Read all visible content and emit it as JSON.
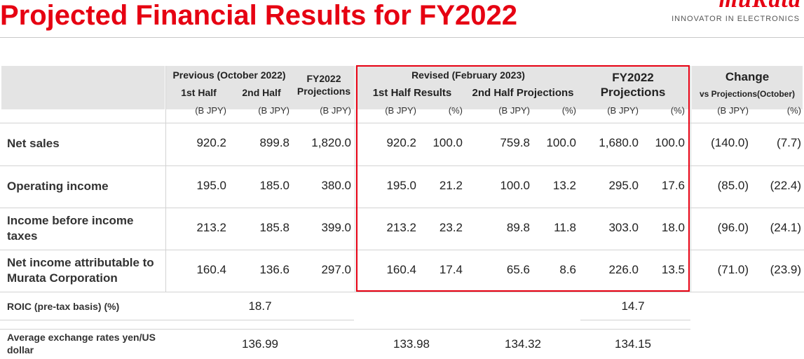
{
  "title": "Projected Financial Results for FY2022",
  "logo": {
    "word": "muRata",
    "tagline": "INNOVATOR IN ELECTRONICS"
  },
  "headers": {
    "previous": "Previous (October 2022)",
    "first_half": "1st Half",
    "second_half": "2nd Half",
    "fy_proj_line1": "FY2022",
    "fy_proj_line2": "Projections",
    "revised": "Revised (February 2023)",
    "first_half_results": "1st Half Results",
    "second_half_projections": "2nd Half Projections",
    "fy2022": "FY2022",
    "projections": "Projections",
    "change": "Change",
    "vs_projections": "vs Projections(October)",
    "unit_byen": "(B JPY)",
    "unit_pct": "(%)"
  },
  "rows": [
    {
      "label": "Net sales",
      "values": [
        "920.2",
        "899.8",
        "1,820.0",
        "920.2",
        "100.0",
        "759.8",
        "100.0",
        "1,680.0",
        "100.0",
        "(140.0)",
        "(7.7)"
      ]
    },
    {
      "label": "Operating income",
      "values": [
        "195.0",
        "185.0",
        "380.0",
        "195.0",
        "21.2",
        "100.0",
        "13.2",
        "295.0",
        "17.6",
        "(85.0)",
        "(22.4)"
      ]
    },
    {
      "label": "Income before income taxes",
      "values": [
        "213.2",
        "185.8",
        "399.0",
        "213.2",
        "23.2",
        "89.8",
        "11.8",
        "303.0",
        "18.0",
        "(96.0)",
        "(24.1)"
      ]
    },
    {
      "label": "Net income attributable to Murata Corporation",
      "values": [
        "160.4",
        "136.6",
        "297.0",
        "160.4",
        "17.4",
        "65.6",
        "8.6",
        "226.0",
        "13.5",
        "(71.0)",
        "(23.9)"
      ]
    }
  ],
  "roic": {
    "label": "ROIC (pre-tax basis) (%)",
    "previous": "18.7",
    "fy2022": "14.7"
  },
  "fx": {
    "label": "Average exchange rates yen/US dollar",
    "previous": "136.99",
    "first_half": "133.98",
    "second_half": "134.32",
    "fy2022": "134.15"
  },
  "colors": {
    "brand_red": "#e60012",
    "header_gray": "#e4e4e4"
  }
}
